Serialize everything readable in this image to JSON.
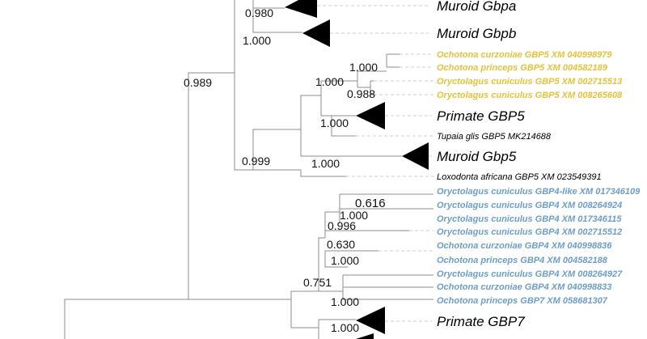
{
  "colors": {
    "lagomorph_gbp5": "#e6c23a",
    "lagomorph_gbp4": "#6d9ec9",
    "branch": "#8c8c8c",
    "collapsed_clade": "#000000"
  },
  "leaves": [
    {
      "id": "muroid-gbpa",
      "label": "Muroid Gbpa",
      "style": "big",
      "collapsed": true
    },
    {
      "id": "muroid-gbpb",
      "label": "Muroid Gbpb",
      "style": "big",
      "collapsed": true
    },
    {
      "id": "ocur-gbp5",
      "label": "Ochotona curzoniae GBP5 XM 040998979",
      "style": "gbp5"
    },
    {
      "id": "opri-gbp5",
      "label": "Ochotona princeps GBP5 XM 004582189",
      "style": "gbp5"
    },
    {
      "id": "ocun-gbp5-a",
      "label": "Oryctolagus cuniculus GBP5 XM 002715513",
      "style": "gbp5"
    },
    {
      "id": "ocun-gbp5-b",
      "label": "Oryctolagus cuniculus GBP5 XM 008265608",
      "style": "gbp5"
    },
    {
      "id": "primate-gbp5",
      "label": "Primate GBP5",
      "style": "big",
      "collapsed": true
    },
    {
      "id": "tupaia-gbp5",
      "label": "Tupaia glis GBP5 MK214688",
      "style": "small"
    },
    {
      "id": "muroid-gbp5",
      "label": "Muroid Gbp5",
      "style": "big",
      "collapsed": true
    },
    {
      "id": "loxodonta-gbp5",
      "label": "Loxodonta africana GBP5 XM 023549391",
      "style": "small"
    },
    {
      "id": "ocun-gbp4like",
      "label": "Oryctolagus cuniculus GBP4-like XM 017346109",
      "style": "gbp4"
    },
    {
      "id": "ocun-gbp4-a",
      "label": "Oryctolagus cuniculus GBP4 XM 008264924",
      "style": "gbp4"
    },
    {
      "id": "ocun-gbp4-b",
      "label": "Oryctolagus cuniculus GBP4 XM 017346115",
      "style": "gbp4"
    },
    {
      "id": "ocun-gbp4-c",
      "label": "Oryctolagus cuniculus GBP4 XM 002715512",
      "style": "gbp4"
    },
    {
      "id": "ocur-gbp4-a",
      "label": "Ochotona curzoniae GBP4 XM 040998836",
      "style": "gbp4"
    },
    {
      "id": "opri-gbp4",
      "label": "Ochotona princeps GBP4 XM 004582188",
      "style": "gbp4"
    },
    {
      "id": "ocun-gbp4-d",
      "label": "Oryctolagus cuniculus GBP4 XM 008264927",
      "style": "gbp4"
    },
    {
      "id": "ocur-gbp4-b",
      "label": "Ochotona curzoniae GBP4 XM 040998833",
      "style": "gbp4"
    },
    {
      "id": "opri-gbp7",
      "label": "Ochotona princeps GBP7 XM 058681307",
      "style": "gbp4"
    },
    {
      "id": "primate-gbp7",
      "label": "Primate GBP7",
      "style": "big",
      "collapsed": true
    }
  ],
  "supports": [
    {
      "id": "s-0980",
      "value": "0.980"
    },
    {
      "id": "s-1000-gbpb",
      "value": "1.000"
    },
    {
      "id": "s-0989",
      "value": "0.989"
    },
    {
      "id": "s-1000-ochotona",
      "value": "1.000"
    },
    {
      "id": "s-1000-lago-gbp5",
      "value": "1.000"
    },
    {
      "id": "s-0988",
      "value": "0.988"
    },
    {
      "id": "s-1000-primate5",
      "value": "1.000"
    },
    {
      "id": "s-0999",
      "value": "0.999"
    },
    {
      "id": "s-1000-muroid5",
      "value": "1.000"
    },
    {
      "id": "s-0616",
      "value": "0.616"
    },
    {
      "id": "s-1000-gbp4",
      "value": "1.000"
    },
    {
      "id": "s-0996",
      "value": "0.996"
    },
    {
      "id": "s-0630",
      "value": "0.630"
    },
    {
      "id": "s-1000-ochgbp4",
      "value": "1.000"
    },
    {
      "id": "s-0751",
      "value": "0.751"
    },
    {
      "id": "s-1000-gbp7",
      "value": "1.000"
    },
    {
      "id": "s-1000-primate7",
      "value": "1.000"
    }
  ]
}
